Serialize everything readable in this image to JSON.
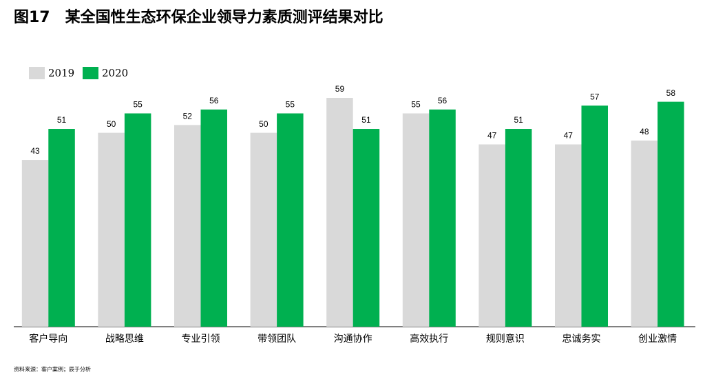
{
  "chart_data": {
    "type": "bar",
    "title": "图17　某全国性生态环保企业领导力素质测评结果对比",
    "categories": [
      "客户导向",
      "战略思维",
      "专业引领",
      "带领团队",
      "沟通协作",
      "高效执行",
      "规则意识",
      "忠诚务实",
      "创业激情"
    ],
    "series": [
      {
        "name": "2019",
        "color": "#d9d9d9",
        "values": [
          43,
          50,
          52,
          50,
          59,
          55,
          47,
          47,
          48
        ]
      },
      {
        "name": "2020",
        "color": "#00b050",
        "values": [
          51,
          55,
          56,
          55,
          51,
          56,
          51,
          57,
          58
        ]
      }
    ],
    "source": "资料来源：客户案例；辰于分析"
  }
}
